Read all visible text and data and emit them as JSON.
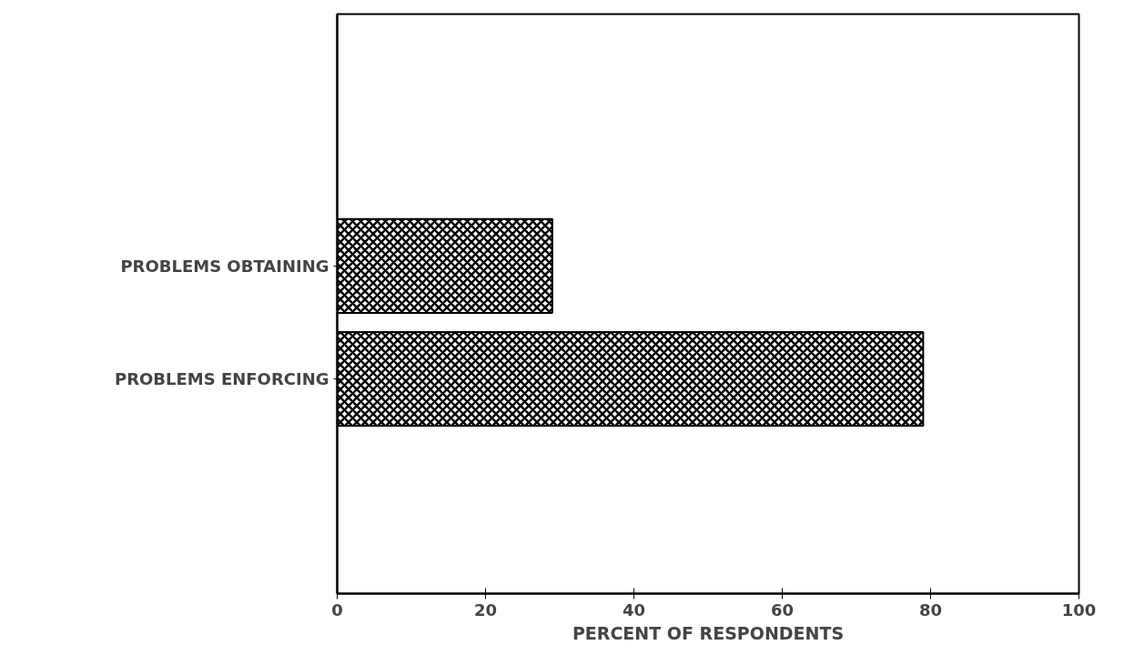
{
  "chart_data": {
    "type": "bar",
    "orientation": "horizontal",
    "xlabel": "PERCENT OF RESPONDENTS",
    "categories": [
      "PROBLEMS OBTAINING",
      "PROBLEMS ENFORCING"
    ],
    "values": [
      29,
      79
    ],
    "color": "#000000",
    "xlim": [
      0,
      100
    ],
    "xticks": [
      0,
      20,
      40,
      60,
      80,
      100
    ],
    "grid": false
  }
}
